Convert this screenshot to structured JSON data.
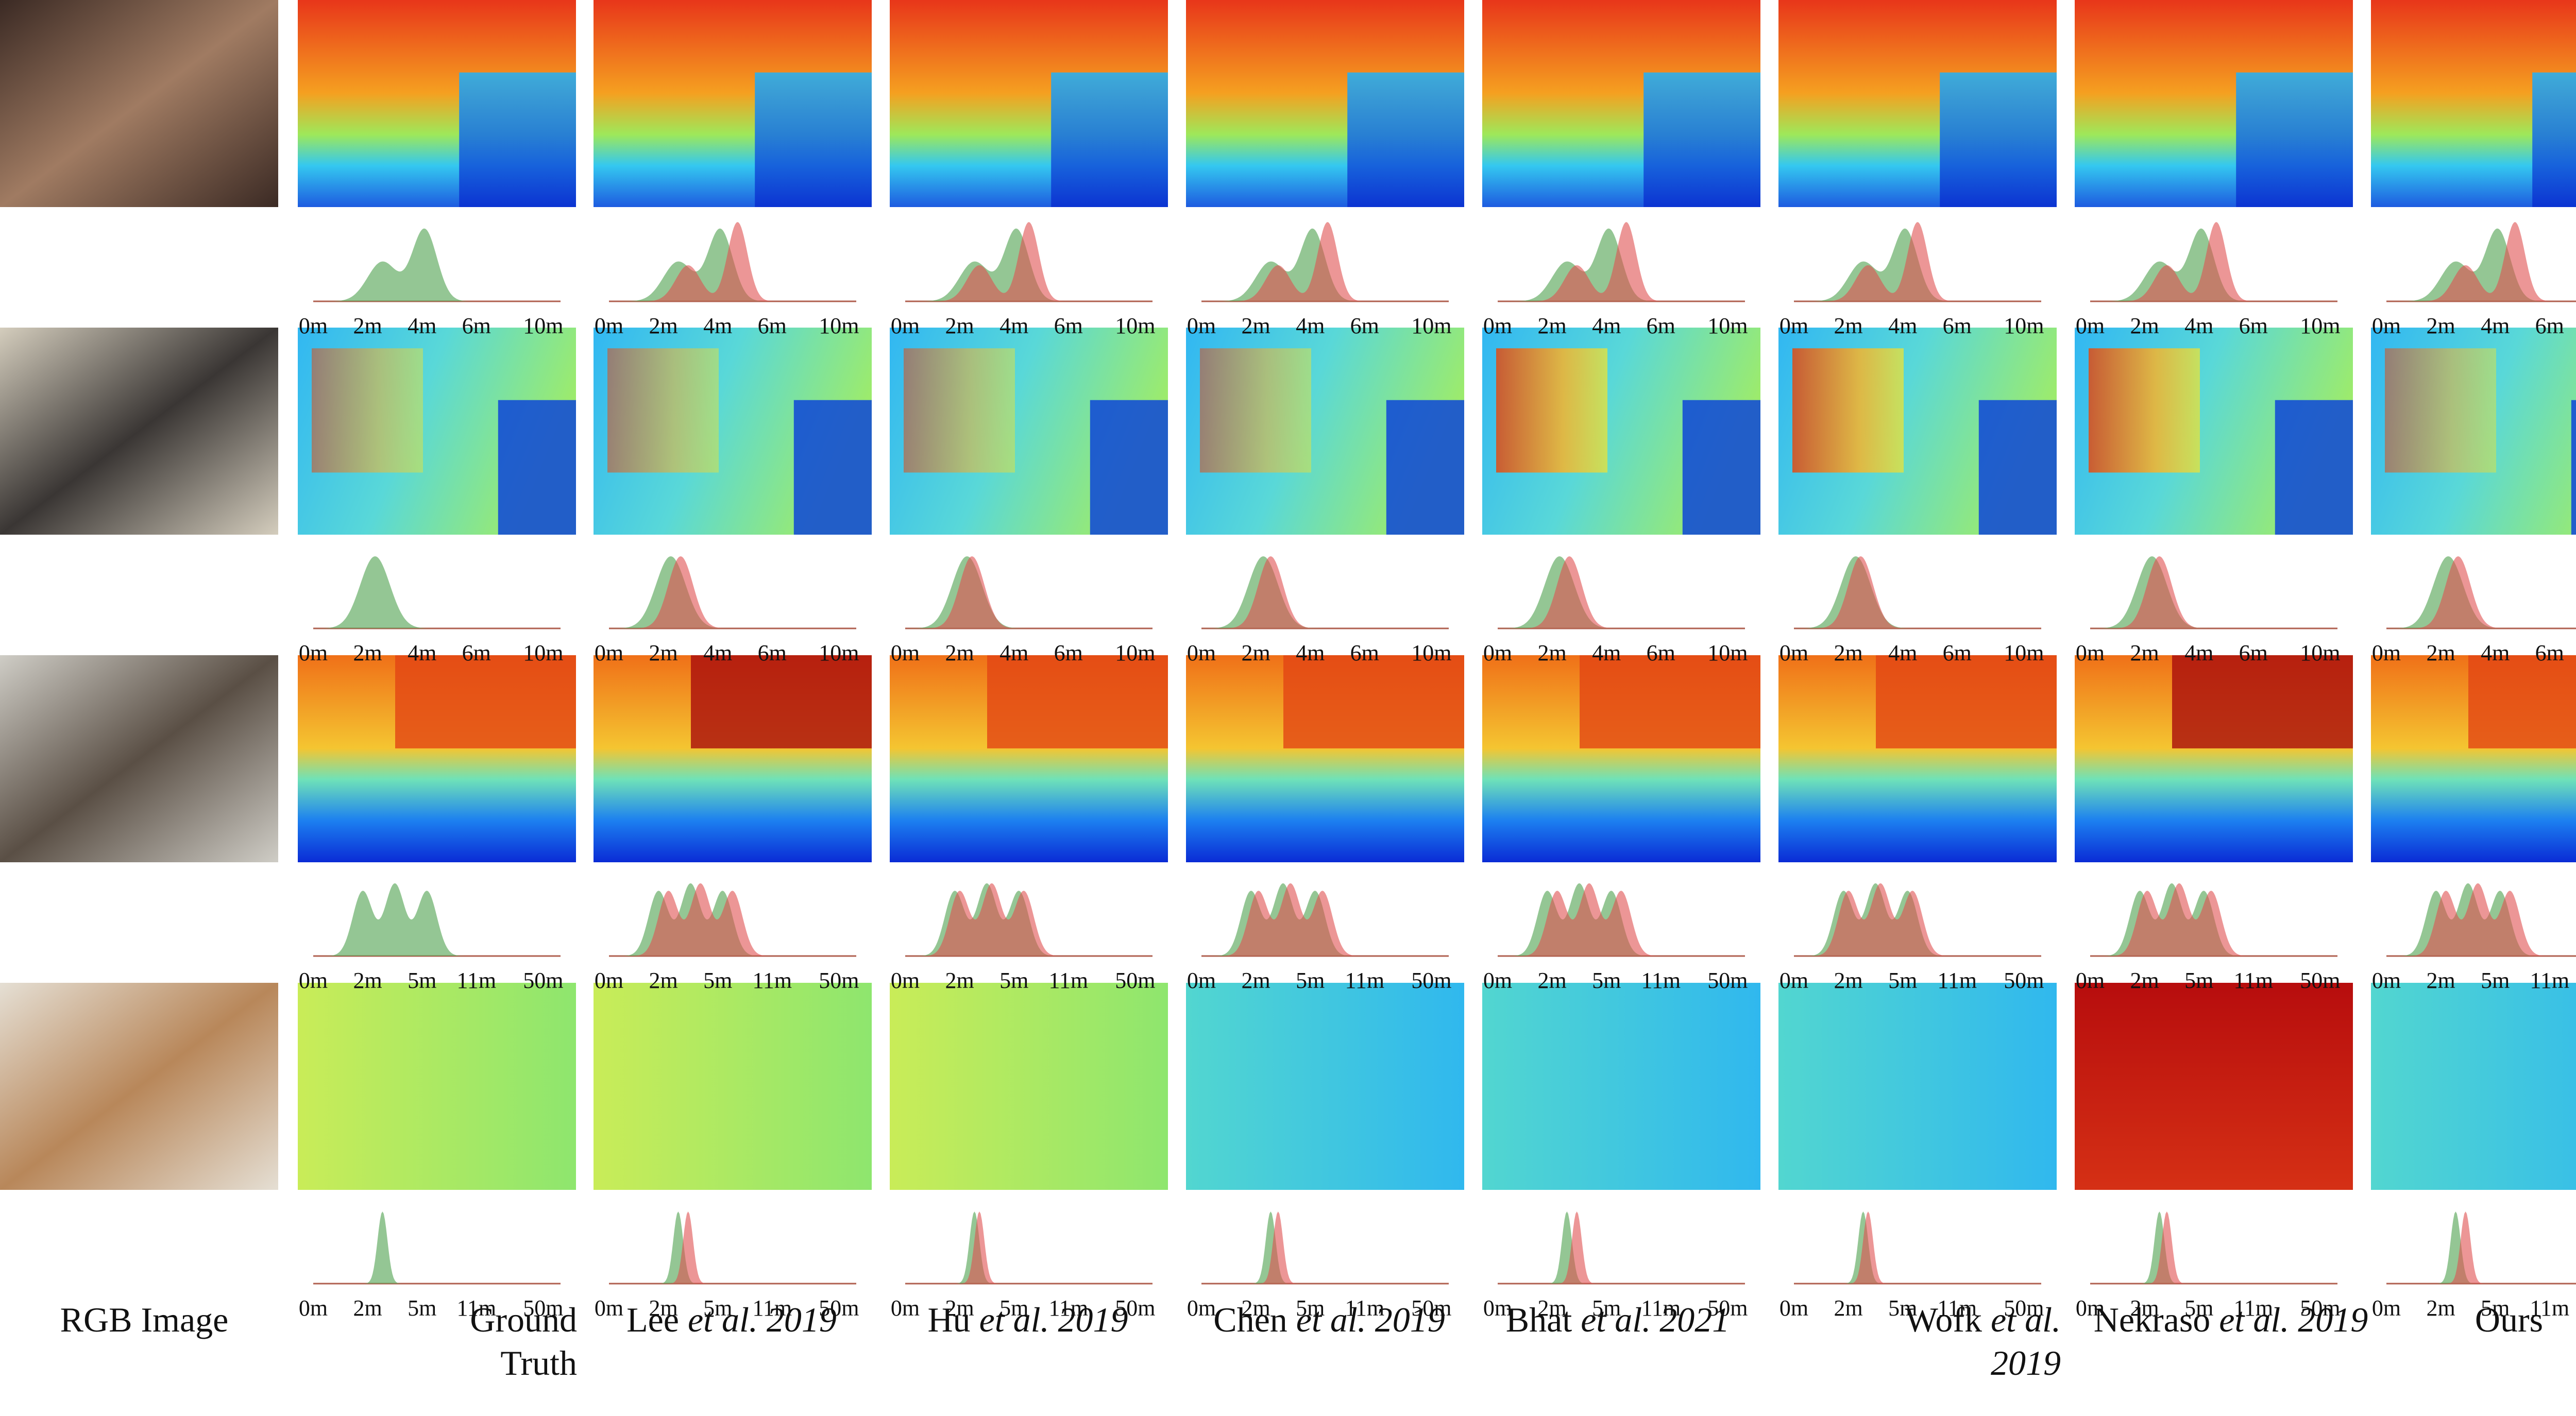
{
  "figure": {
    "columns": [
      {
        "id": "rgb",
        "label_parts": [
          "RGB Image"
        ]
      },
      {
        "id": "gt",
        "label_parts": [
          "Ground",
          "Truth"
        ]
      },
      {
        "id": "lee",
        "label_main": "Lee ",
        "label_it": "et al. 2019"
      },
      {
        "id": "hu",
        "label_main": "Hu ",
        "label_it": "et al. 2019"
      },
      {
        "id": "chen",
        "label_main": "Chen ",
        "label_it": "et al. 2019"
      },
      {
        "id": "bhat",
        "label_main": "Bhat ",
        "label_it": "et al. 2021"
      },
      {
        "id": "wofk",
        "label_main": "Wofk ",
        "label_it": "et al.",
        "label_it2": "2019"
      },
      {
        "id": "nekraso",
        "label_main": "Nekraso ",
        "label_it": "et al. 2019"
      },
      {
        "id": "ours",
        "label_main": "Ours"
      }
    ],
    "tick_sets": [
      [
        "0m",
        "2m",
        "4m",
        "6m",
        "10m"
      ],
      [
        "0m",
        "2m",
        "4m",
        "6m",
        "10m"
      ],
      [
        "0m",
        "2m",
        "5m",
        "11m",
        "50m"
      ],
      [
        "0m",
        "2m",
        "5m",
        "11m",
        "50m"
      ]
    ],
    "colors": {
      "gt_hist": "#5aa85a",
      "pred_hist": "#e05050",
      "overlap_hist": "#a0603a",
      "axis": "#b06050"
    }
  }
}
